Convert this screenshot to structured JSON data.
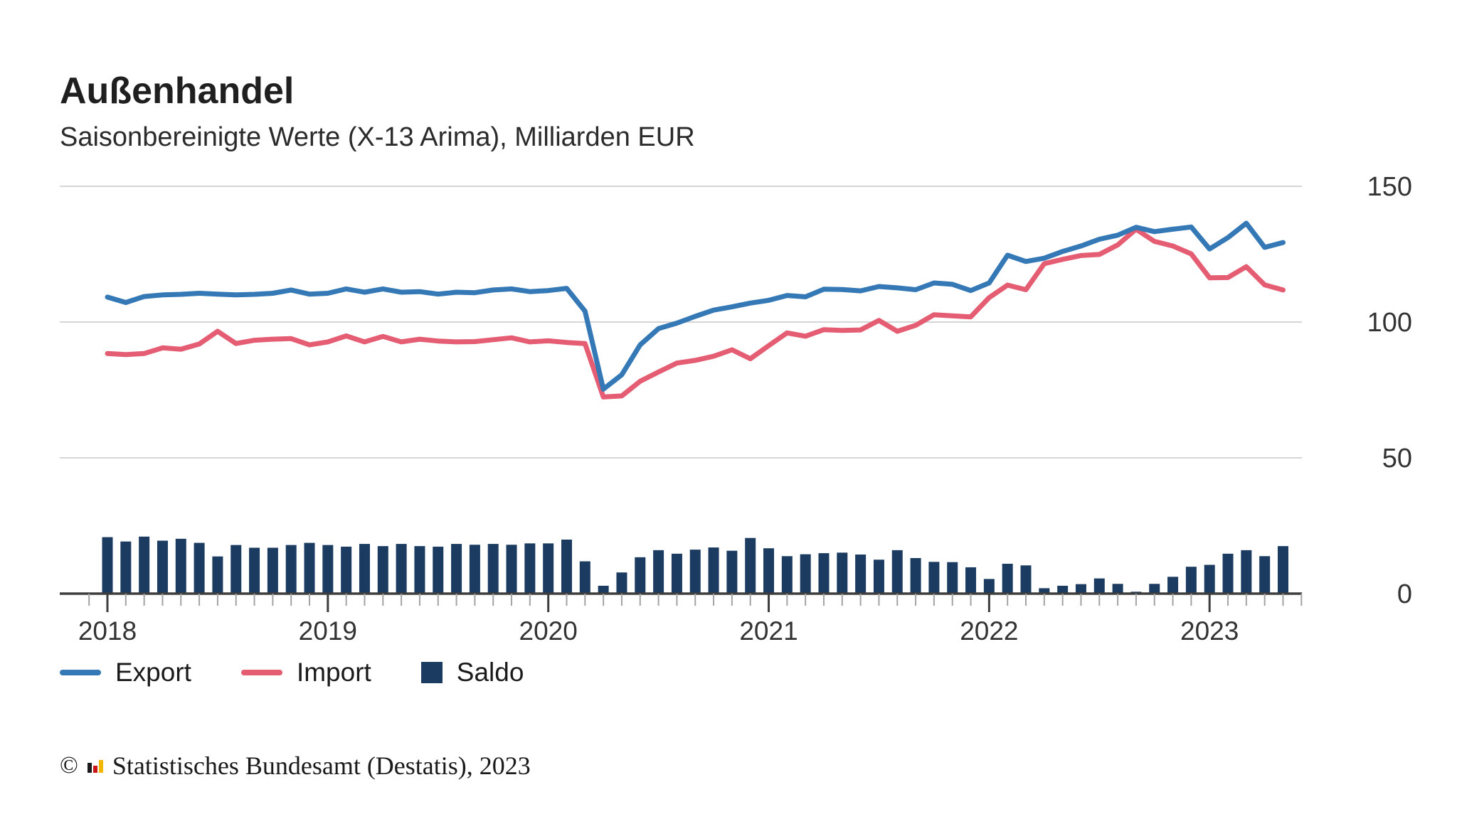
{
  "header": {
    "title": "Außenhandel",
    "subtitle": "Saisonbereinigte Werte (X-13 Arima), Milliarden EUR"
  },
  "legend": {
    "items": [
      {
        "label": "Export",
        "swatch": "line",
        "color": "#3478b6"
      },
      {
        "label": "Import",
        "swatch": "line",
        "color": "#e45d72"
      },
      {
        "label": "Saldo",
        "swatch": "square",
        "color": "#1b3c60"
      }
    ]
  },
  "footer": {
    "symbol": "©",
    "logo_icon": "destatis-bars-logo",
    "text": "Statistisches Bundesamt (Destatis), 2023"
  },
  "chart_data": {
    "type": "line+bar",
    "title": "Außenhandel",
    "subtitle": "Saisonbereinigte Werte (X-13 Arima), Milliarden EUR",
    "unit": "Milliarden EUR",
    "ylim": [
      0,
      150
    ],
    "y_ticks": [
      0,
      50,
      100,
      150
    ],
    "grid": "horizontal",
    "legend_position": "bottom",
    "x_tick_labels": [
      "2018",
      "2019",
      "2020",
      "2021",
      "2022",
      "2023"
    ],
    "x": [
      "2018-01",
      "2018-02",
      "2018-03",
      "2018-04",
      "2018-05",
      "2018-06",
      "2018-07",
      "2018-08",
      "2018-09",
      "2018-10",
      "2018-11",
      "2018-12",
      "2019-01",
      "2019-02",
      "2019-03",
      "2019-04",
      "2019-05",
      "2019-06",
      "2019-07",
      "2019-08",
      "2019-09",
      "2019-10",
      "2019-11",
      "2019-12",
      "2020-01",
      "2020-02",
      "2020-03",
      "2020-04",
      "2020-05",
      "2020-06",
      "2020-07",
      "2020-08",
      "2020-09",
      "2020-10",
      "2020-11",
      "2020-12",
      "2021-01",
      "2021-02",
      "2021-03",
      "2021-04",
      "2021-05",
      "2021-06",
      "2021-07",
      "2021-08",
      "2021-09",
      "2021-10",
      "2021-11",
      "2021-12",
      "2022-01",
      "2022-02",
      "2022-03",
      "2022-04",
      "2022-05",
      "2022-06",
      "2022-07",
      "2022-08",
      "2022-09",
      "2022-10",
      "2022-11",
      "2022-12",
      "2023-01",
      "2023-02",
      "2023-03",
      "2023-04",
      "2023-05"
    ],
    "series": [
      {
        "name": "Export",
        "type": "line",
        "color": "#3478b6",
        "values": [
          109.2,
          107.2,
          109.4,
          110.0,
          110.2,
          110.6,
          110.3,
          110.0,
          110.2,
          110.6,
          111.8,
          110.3,
          110.6,
          112.2,
          111.0,
          112.2,
          111.0,
          111.2,
          110.3,
          111.0,
          110.8,
          111.8,
          112.2,
          111.2,
          111.6,
          112.4,
          104.0,
          75.3,
          80.6,
          91.6,
          97.6,
          99.6,
          102.1,
          104.4,
          105.6,
          107.0,
          108.0,
          109.8,
          109.3,
          112.1,
          112.0,
          111.5,
          113.1,
          112.6,
          111.9,
          114.4,
          113.9,
          111.6,
          114.4,
          124.6,
          122.3,
          123.5,
          126.0,
          128.0,
          130.5,
          132.0,
          134.9,
          133.3,
          134.2,
          135.0,
          126.9,
          131.1,
          136.4,
          127.5,
          129.3
        ]
      },
      {
        "name": "Import",
        "type": "line",
        "color": "#e45d72",
        "values": [
          88.4,
          88.0,
          88.4,
          90.5,
          90.0,
          91.9,
          96.6,
          92.1,
          93.3,
          93.7,
          93.9,
          91.6,
          92.7,
          94.9,
          92.7,
          94.7,
          92.7,
          93.7,
          93.0,
          92.7,
          92.8,
          93.5,
          94.2,
          92.7,
          93.1,
          92.5,
          92.1,
          72.4,
          72.8,
          78.2,
          81.6,
          84.9,
          85.9,
          87.4,
          89.8,
          86.5,
          91.3,
          96.0,
          94.8,
          97.2,
          96.9,
          97.1,
          100.6,
          96.6,
          98.8,
          102.7,
          102.3,
          101.9,
          109.0,
          113.6,
          111.9,
          121.5,
          123.1,
          124.5,
          124.9,
          128.4,
          134.2,
          129.7,
          128.0,
          125.1,
          116.3,
          116.4,
          120.4,
          113.7,
          111.8
        ]
      },
      {
        "name": "Saldo",
        "type": "bar",
        "color": "#1b3c60",
        "values": [
          20.8,
          19.2,
          21.0,
          19.5,
          20.2,
          18.7,
          13.7,
          17.9,
          16.9,
          16.9,
          17.9,
          18.7,
          17.9,
          17.3,
          18.3,
          17.5,
          18.3,
          17.5,
          17.3,
          18.3,
          18.0,
          18.3,
          18.0,
          18.5,
          18.5,
          19.9,
          11.9,
          2.9,
          7.8,
          13.4,
          16.0,
          14.7,
          16.2,
          17.0,
          15.8,
          20.5,
          16.7,
          13.8,
          14.5,
          14.9,
          15.1,
          14.4,
          12.5,
          16.0,
          13.1,
          11.7,
          11.6,
          9.7,
          5.4,
          11.0,
          10.4,
          2.0,
          2.9,
          3.5,
          5.6,
          3.6,
          0.7,
          3.6,
          6.2,
          9.9,
          10.6,
          14.7,
          16.0,
          13.8,
          17.5
        ]
      }
    ]
  },
  "colors": {
    "gridline": "#d6d6d6",
    "axis": "#3d3d3d",
    "minor_tick": "#a3a3a3",
    "axis_label": "#333333"
  }
}
